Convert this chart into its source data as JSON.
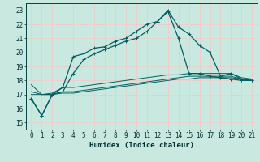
{
  "title": "",
  "xlabel": "Humidex (Indice chaleur)",
  "xlim": [
    -0.5,
    21.5
  ],
  "ylim": [
    14.5,
    23.5
  ],
  "xticks": [
    0,
    1,
    2,
    3,
    4,
    5,
    6,
    7,
    8,
    9,
    10,
    11,
    12,
    13,
    14,
    15,
    16,
    17,
    18,
    19,
    20,
    21
  ],
  "yticks": [
    15,
    16,
    17,
    18,
    19,
    20,
    21,
    22,
    23
  ],
  "background_color": "#c9e8e0",
  "grid_color": "#f5c8c8",
  "line_color": "#005f5f",
  "line1_x": [
    0,
    1,
    2,
    3,
    4,
    5,
    6,
    7,
    8,
    9,
    10,
    11,
    12,
    13,
    14,
    15,
    16,
    17,
    18,
    19,
    20,
    21
  ],
  "line1_y": [
    16.7,
    15.5,
    17.0,
    17.5,
    19.7,
    19.9,
    20.3,
    20.4,
    20.8,
    21.0,
    21.5,
    22.0,
    22.2,
    23.0,
    21.8,
    21.3,
    20.5,
    20.0,
    18.3,
    18.5,
    18.1,
    18.0
  ],
  "line2_x": [
    0,
    1,
    2,
    3,
    4,
    5,
    6,
    7,
    8,
    9,
    10,
    11,
    12,
    13,
    14,
    15,
    16,
    17,
    18,
    19,
    20,
    21
  ],
  "line2_y": [
    16.7,
    15.5,
    17.0,
    17.2,
    18.5,
    19.5,
    19.9,
    20.2,
    20.5,
    20.8,
    21.0,
    21.5,
    22.2,
    22.9,
    21.0,
    18.5,
    18.5,
    18.3,
    18.2,
    18.1,
    18.0,
    18.0
  ],
  "line3_x": [
    0,
    1,
    2,
    3,
    4,
    5,
    6,
    7,
    8,
    9,
    10,
    11,
    12,
    13,
    14,
    15,
    16,
    17,
    18,
    19,
    20,
    21
  ],
  "line3_y": [
    17.7,
    17.0,
    17.1,
    17.5,
    17.5,
    17.6,
    17.7,
    17.8,
    17.9,
    18.0,
    18.1,
    18.2,
    18.3,
    18.4,
    18.4,
    18.5,
    18.5,
    18.5,
    18.5,
    18.5,
    18.2,
    18.1
  ],
  "line4_x": [
    0,
    1,
    2,
    3,
    4,
    5,
    6,
    7,
    8,
    9,
    10,
    11,
    12,
    13,
    14,
    15,
    16,
    17,
    18,
    19,
    20,
    21
  ],
  "line4_y": [
    17.2,
    17.0,
    17.0,
    17.2,
    17.2,
    17.3,
    17.4,
    17.5,
    17.6,
    17.7,
    17.8,
    17.9,
    18.0,
    18.1,
    18.2,
    18.3,
    18.3,
    18.3,
    18.3,
    18.3,
    18.1,
    18.0
  ],
  "line5_x": [
    0,
    1,
    2,
    3,
    4,
    5,
    6,
    7,
    8,
    9,
    10,
    11,
    12,
    13,
    14,
    15,
    16,
    17,
    18,
    19,
    20,
    21
  ],
  "line5_y": [
    17.0,
    17.0,
    17.0,
    17.1,
    17.1,
    17.2,
    17.3,
    17.4,
    17.5,
    17.6,
    17.7,
    17.8,
    17.9,
    18.0,
    18.1,
    18.1,
    18.2,
    18.2,
    18.2,
    18.2,
    18.1,
    18.0
  ]
}
